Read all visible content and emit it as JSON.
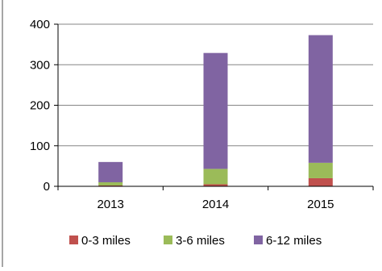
{
  "chart_data": {
    "type": "bar",
    "stacked": true,
    "categories": [
      "2013",
      "2014",
      "2015"
    ],
    "series": [
      {
        "name": "0-3 miles",
        "color": "#c0504d",
        "values": [
          2,
          5,
          20
        ]
      },
      {
        "name": "3-6 miles",
        "color": "#9bbb59",
        "values": [
          8,
          38,
          38
        ]
      },
      {
        "name": "6-12 miles",
        "color": "#8064a2",
        "values": [
          50,
          286,
          315
        ]
      }
    ],
    "y_ticks": [
      "0",
      "100",
      "200",
      "300",
      "400"
    ],
    "ylim": [
      0,
      400
    ],
    "grid": true,
    "legend": "bottom",
    "title": "",
    "xlabel": "",
    "ylabel": ""
  }
}
